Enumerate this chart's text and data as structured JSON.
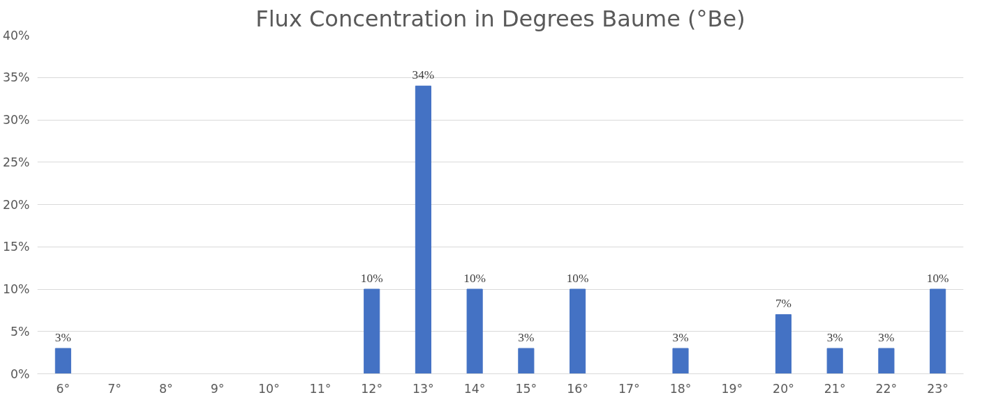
{
  "chart_data": {
    "type": "bar",
    "title": "Flux Concentration in Degrees Baume (°Be)",
    "categories": [
      "6°",
      "7°",
      "8°",
      "9°",
      "10°",
      "11°",
      "12°",
      "13°",
      "14°",
      "15°",
      "16°",
      "17°",
      "18°",
      "19°",
      "20°",
      "21°",
      "22°",
      "23°"
    ],
    "values": [
      3,
      0,
      0,
      0,
      0,
      0,
      10,
      34,
      10,
      3,
      10,
      0,
      3,
      0,
      7,
      3,
      3,
      10
    ],
    "value_labels": [
      "3%",
      null,
      null,
      null,
      null,
      null,
      "10%",
      "34%",
      "10%",
      "3%",
      "10%",
      null,
      "3%",
      null,
      "7%",
      "3%",
      "3%",
      "10%"
    ],
    "color": "#4472c4",
    "ylim": [
      0,
      40
    ],
    "yticks": [
      {
        "value": 0,
        "label": "0%"
      },
      {
        "value": 5,
        "label": "5%"
      },
      {
        "value": 10,
        "label": "10%"
      },
      {
        "value": 15,
        "label": "15%"
      },
      {
        "value": 20,
        "label": "20%"
      },
      {
        "value": 25,
        "label": "25%"
      },
      {
        "value": 30,
        "label": "30%"
      },
      {
        "value": 35,
        "label": "35%"
      },
      {
        "value": 40,
        "label": "40%"
      }
    ],
    "grid": "y"
  }
}
